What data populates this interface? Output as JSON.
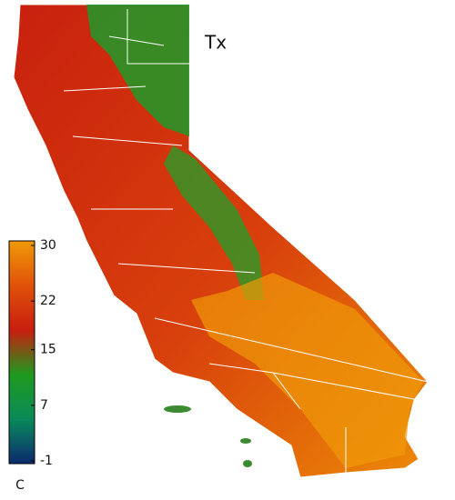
{
  "map": {
    "title": "Tx",
    "colorbar": {
      "ticks": [
        30,
        22,
        15,
        7,
        -1
      ],
      "unit": "C",
      "colors": [
        "#0b2a6e",
        "#0a8a5a",
        "#1f9a1f",
        "#c81e10",
        "#e0520a",
        "#ef9a08"
      ]
    }
  }
}
